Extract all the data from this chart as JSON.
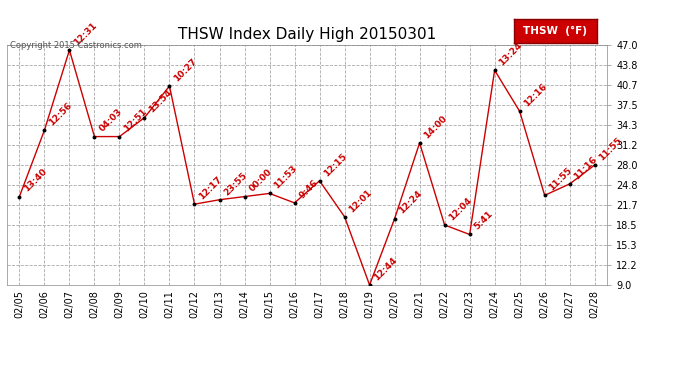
{
  "title": "THSW Index Daily High 20150301",
  "copyright": "Copyright 2015 Castronics.com",
  "legend_label": "THSW  (°F)",
  "dates": [
    "02/05",
    "02/06",
    "02/07",
    "02/08",
    "02/09",
    "02/10",
    "02/11",
    "02/12",
    "02/13",
    "02/14",
    "02/15",
    "02/16",
    "02/17",
    "02/18",
    "02/19",
    "02/20",
    "02/21",
    "02/22",
    "02/23",
    "02/24",
    "02/25",
    "02/26",
    "02/27",
    "02/28"
  ],
  "values": [
    23.0,
    33.5,
    46.2,
    32.5,
    32.5,
    35.5,
    40.5,
    21.8,
    22.5,
    23.0,
    23.5,
    22.0,
    25.5,
    19.8,
    9.0,
    19.5,
    31.5,
    18.5,
    17.0,
    43.0,
    36.5,
    23.2,
    25.0,
    28.0
  ],
  "labels": [
    "13:40",
    "12:56",
    "12:31",
    "04:03",
    "12:51",
    "13:54",
    "10:27",
    "12:17",
    "23:55",
    "00:00",
    "11:53",
    "9:46",
    "12:15",
    "12:01",
    "12:44",
    "12:24",
    "14:00",
    "12:04",
    "5:41",
    "13:24",
    "12:16",
    "11:55",
    "11:16",
    "11:55"
  ],
  "ylim_min": 9.0,
  "ylim_max": 47.0,
  "yticks": [
    9.0,
    12.2,
    15.3,
    18.5,
    21.7,
    24.8,
    28.0,
    31.2,
    34.3,
    37.5,
    40.7,
    43.8,
    47.0
  ],
  "line_color": "#cc0000",
  "marker_color": "#000000",
  "label_color": "#cc0000",
  "bg_color": "#ffffff",
  "grid_color": "#aaaaaa",
  "title_fontsize": 11,
  "label_fontsize": 6.5,
  "tick_fontsize": 7,
  "legend_bg": "#cc0000",
  "legend_text_color": "#ffffff",
  "copyright_color": "#555555"
}
